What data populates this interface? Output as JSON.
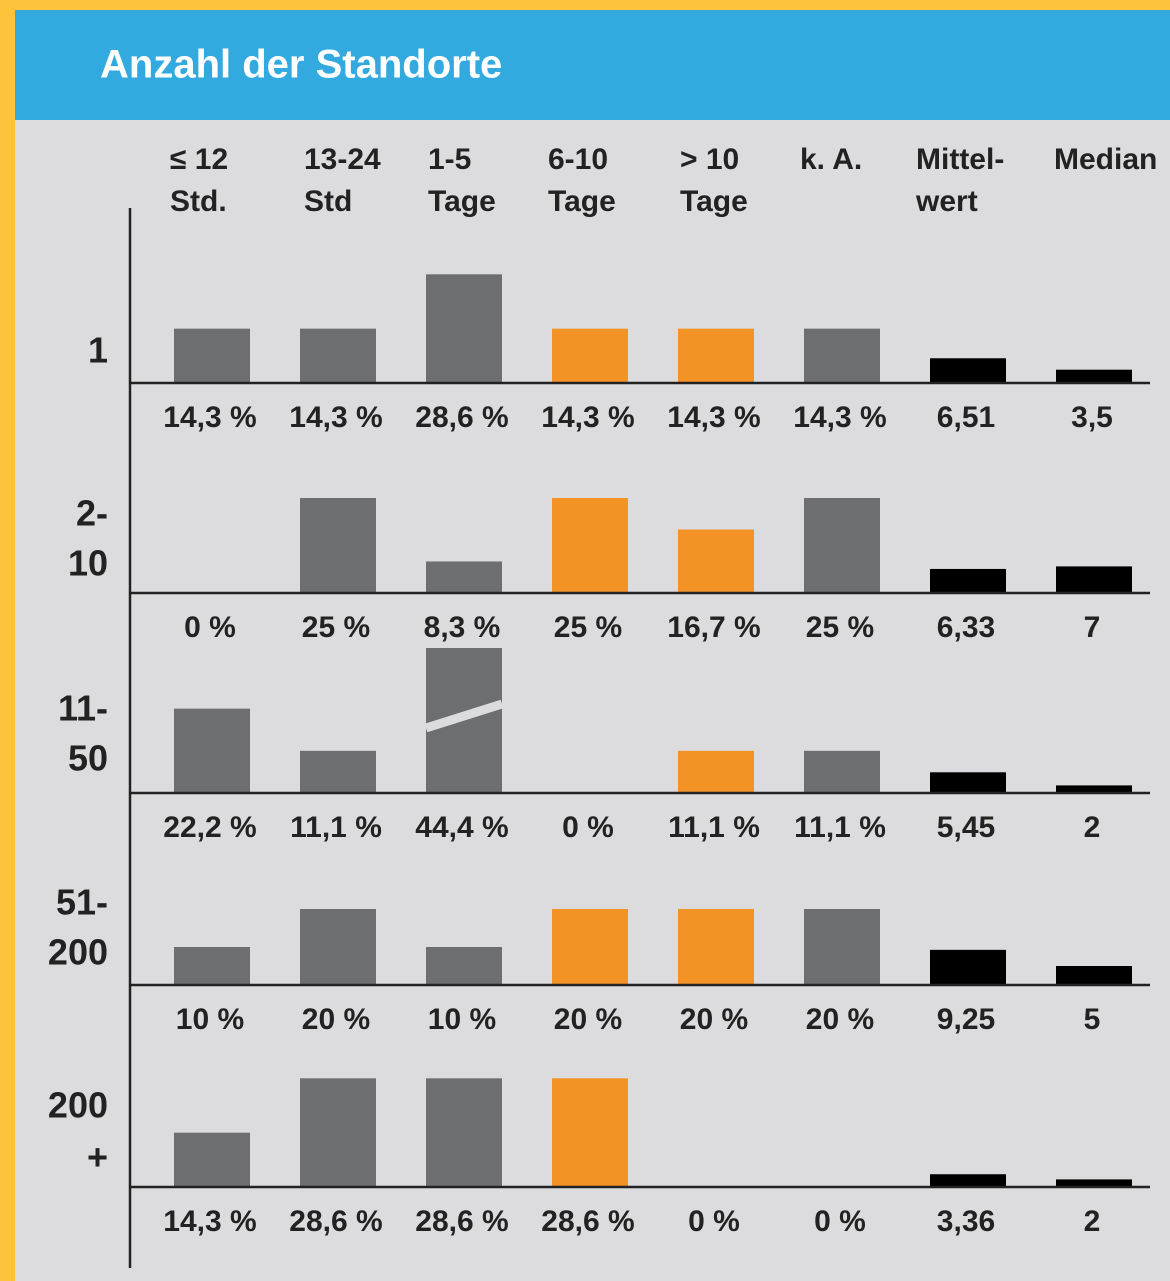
{
  "chart_data": {
    "type": "bar",
    "title": "Anzahl der Standorte",
    "categories": [
      [
        "≤ 12",
        "Std."
      ],
      [
        "13-24",
        "Std"
      ],
      [
        "1-5",
        "Tage"
      ],
      [
        "6-10",
        "Tage"
      ],
      [
        "> 10",
        "Tage"
      ],
      [
        "k. A."
      ],
      [
        "Mittel-",
        "wert"
      ],
      [
        "Median"
      ]
    ],
    "colors": [
      "#6d6e70",
      "#6d6e70",
      "#6d6e70",
      "#f39325",
      "#f39325",
      "#6d6e70",
      "#000000",
      "#000000"
    ],
    "panels": [
      {
        "label": [
          "1"
        ],
        "values": [
          14.3,
          14.3,
          28.6,
          14.3,
          14.3,
          14.3,
          6.51,
          3.5
        ],
        "value_labels": [
          "14,3 %",
          "14,3 %",
          "28,6 %",
          "14,3 %",
          "14,3 %",
          "14,3 %",
          "6,51",
          "3,5"
        ]
      },
      {
        "label": [
          "2-",
          "10"
        ],
        "values": [
          0,
          25,
          8.3,
          25,
          16.7,
          25,
          6.33,
          7
        ],
        "value_labels": [
          "0 %",
          "25 %",
          "8,3 %",
          "25 %",
          "16,7 %",
          "25 %",
          "6,33",
          "7"
        ]
      },
      {
        "label": [
          "11-",
          "50"
        ],
        "values": [
          22.2,
          11.1,
          44.4,
          0,
          11.1,
          11.1,
          5.45,
          2
        ],
        "value_labels": [
          "22,2 %",
          "11,1 %",
          "44,4 %",
          "0 %",
          "11,1 %",
          "11,1 %",
          "5,45",
          "2"
        ]
      },
      {
        "label": [
          "51-",
          "200"
        ],
        "values": [
          10,
          20,
          10,
          20,
          20,
          20,
          9.25,
          5
        ],
        "value_labels": [
          "10 %",
          "20 %",
          "10 %",
          "20 %",
          "20 %",
          "20 %",
          "9,25",
          "5"
        ]
      },
      {
        "label": [
          "200",
          "+"
        ],
        "values": [
          14.3,
          28.6,
          28.6,
          28.6,
          0,
          0,
          3.36,
          2
        ],
        "value_labels": [
          "14,3 %",
          "28,6 %",
          "28,6 %",
          "28,6 %",
          "0 %",
          "0 %",
          "3,36",
          "2"
        ]
      }
    ]
  }
}
